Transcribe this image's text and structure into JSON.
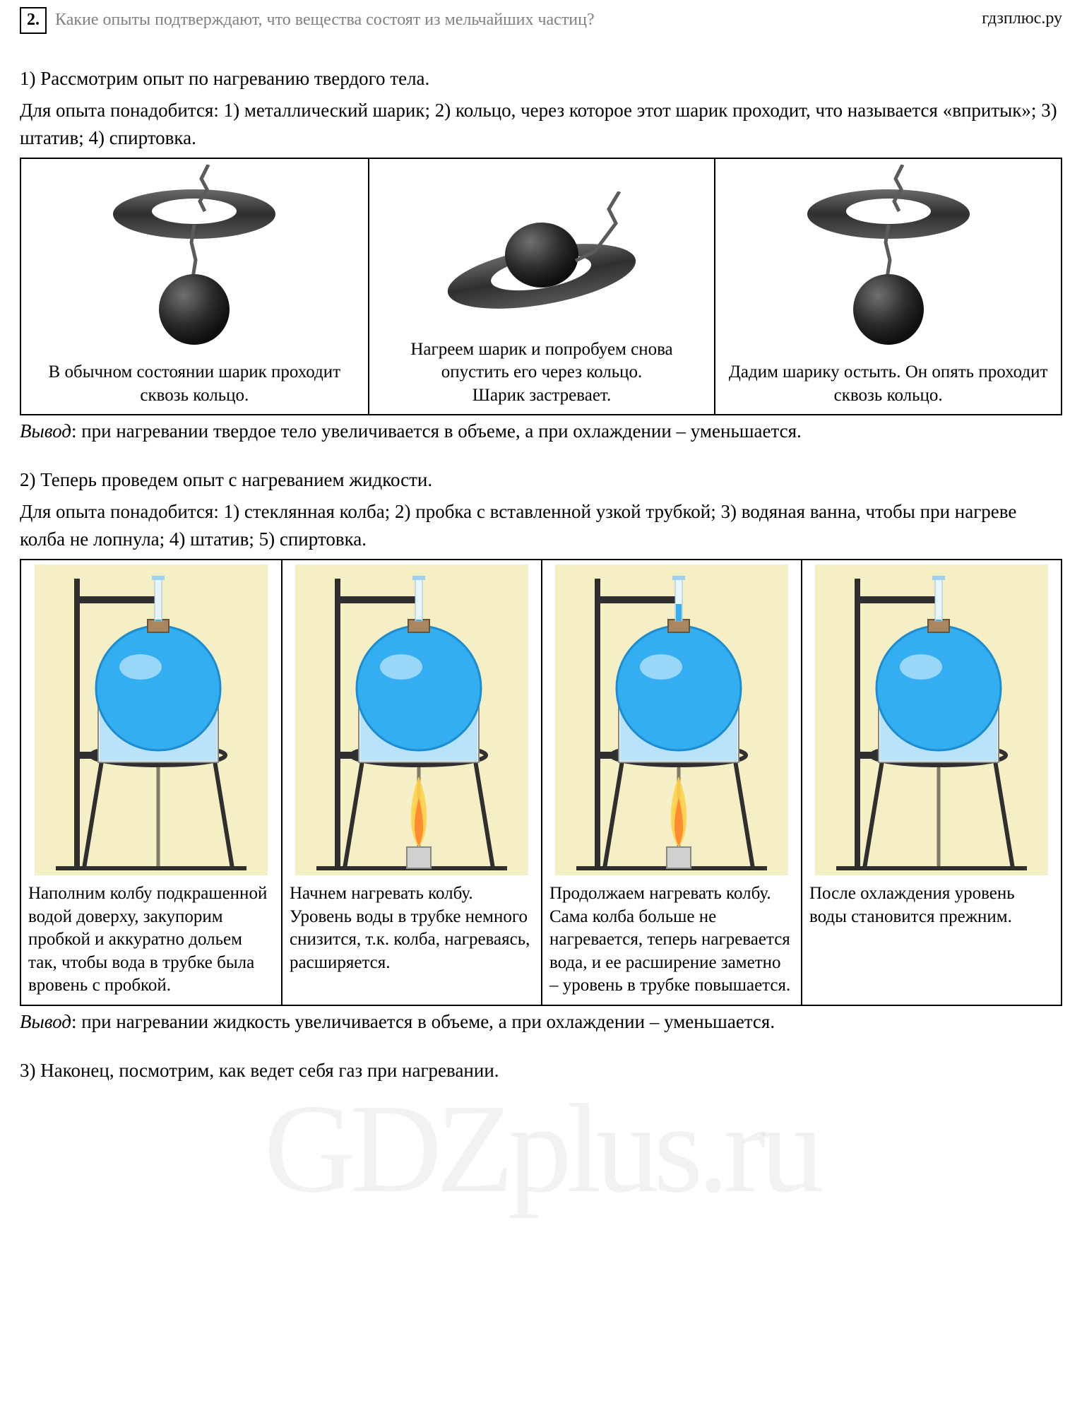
{
  "site_label": "гдзплюс.ру",
  "question": {
    "number": "2.",
    "text": "Какие опыты подтверждают, что вещества состоят из мельчайших частиц?"
  },
  "experiment1": {
    "intro": "1) Рассмотрим опыт по нагреванию твердого тела.",
    "materials": "Для опыта понадобится: 1) металлический шарик; 2) кольцо, через которое этот шарик проходит, что называется «впритык»;  3) штатив; 4) спиртовка.",
    "cells": [
      {
        "caption": "В обычном состоянии шарик проходит сквозь кольцо."
      },
      {
        "caption": "Нагреем шарик и попробуем снова опустить его через кольцо.\nШарик застревает."
      },
      {
        "caption": "Дадим шарику остыть. Он опять проходит сквозь кольцо."
      }
    ],
    "conclusion_label": "Вывод",
    "conclusion_text": ": при нагревании твердое тело увеличивается в объеме, а при охлаждении – уменьшается."
  },
  "experiment2": {
    "intro": "2) Теперь проведем опыт с нагреванием жидкости.",
    "materials": "Для опыта понадобится: 1) стеклянная колба; 2) пробка с вставленной узкой трубкой; 3) водяная ванна, чтобы при нагреве колба не лопнула; 4) штатив; 5) спиртовка.",
    "cells": [
      {
        "caption": "Наполним колбу подкрашенной водой доверху, закупорим пробкой и аккуратно дольем так, чтобы вода в трубке была вровень с пробкой.",
        "flame": false,
        "tube_level": 0
      },
      {
        "caption": "Начнем нагревать колбу. Уровень воды в трубке немного снизится, т.к. колба, нагреваясь, расширяется.",
        "flame": true,
        "tube_level": -6
      },
      {
        "caption": "Продолжаем нагревать колбу. Сама колба больше не нагревается, теперь нагревается вода, и ее расширение заметно – уровень в трубке повышается.",
        "flame": true,
        "tube_level": 22
      },
      {
        "caption": "После охлаждения уровень воды становится прежним.",
        "flame": false,
        "tube_level": 0
      }
    ],
    "conclusion_label": "Вывод",
    "conclusion_text": ": при нагревании жидкость увеличивается в объеме, а при охлаждении – уменьшается."
  },
  "footer_line": "3) Наконец, посмотрим, как ведет себя газ при нагревании.",
  "watermark": "GDZplus.ru",
  "colors": {
    "panel_bg_exp2": "#f4efc4",
    "water": "#33aef0",
    "water_dark": "#1d8cd0",
    "stand": "#2f2f2f",
    "flame_outer": "#ffd14a",
    "flame_inner": "#ff8c2e",
    "ball": "#2a2a2a",
    "ring": "#3b3b3b",
    "chain": "#5b5b5b"
  }
}
